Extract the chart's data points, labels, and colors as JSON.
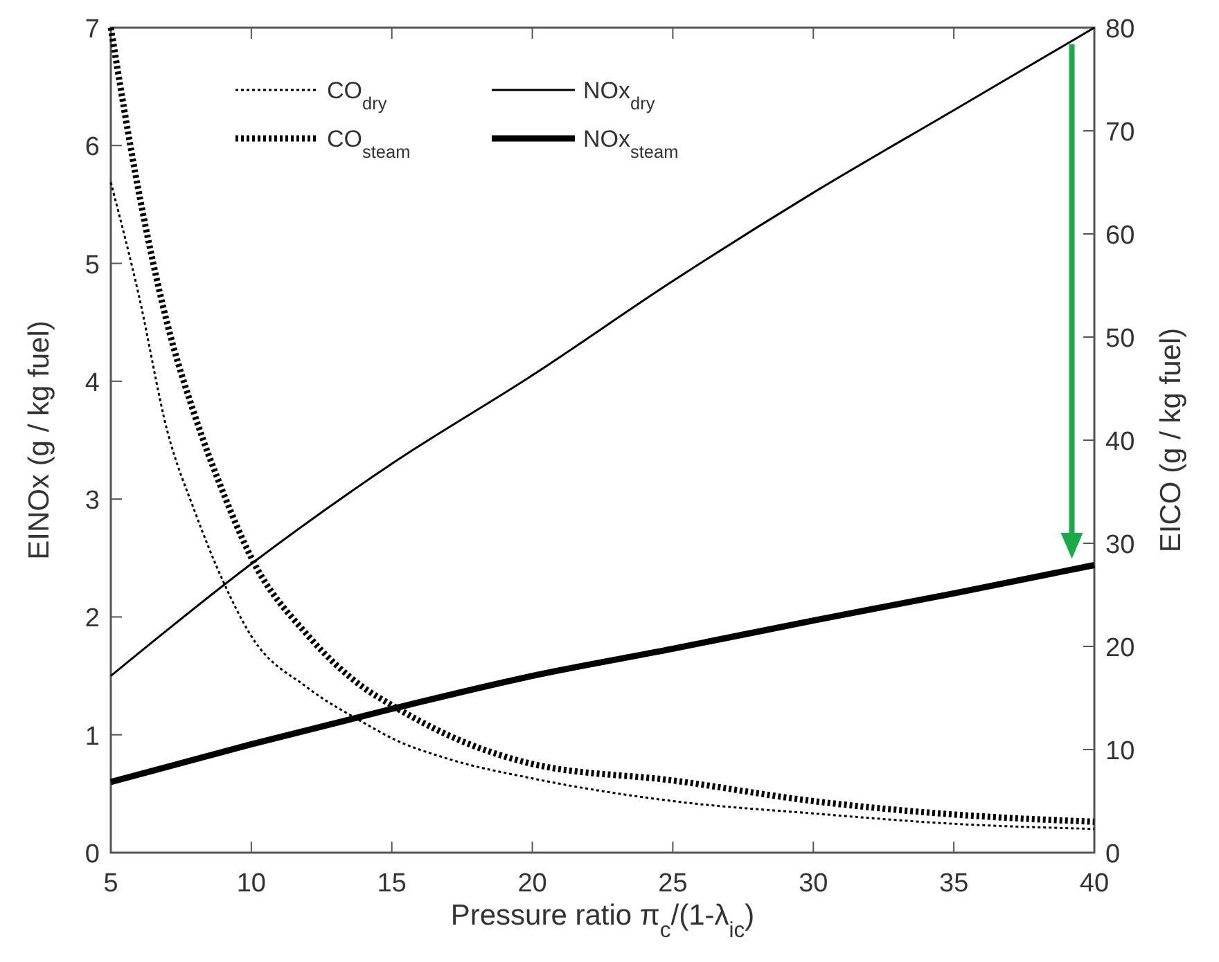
{
  "chart_data": {
    "type": "line",
    "xlabel": "Pressure ratio π$_{c}$/(1-λ$_{ic}$)",
    "ylabel": "EINOx  (g / kg fuel)",
    "y2label": "EICO  (g / kg fuel)",
    "xlim": [
      5,
      40
    ],
    "xticks": [
      5,
      10,
      15,
      20,
      25,
      30,
      35,
      40
    ],
    "ylim": [
      0,
      7
    ],
    "yticks": [
      0,
      1,
      2,
      3,
      4,
      5,
      6,
      7
    ],
    "y2lim": [
      0,
      80
    ],
    "y2ticks": [
      0,
      10,
      20,
      30,
      40,
      50,
      60,
      70,
      80
    ],
    "legend": "top left",
    "grid": false,
    "series": [
      {
        "name": "CO$_{dry}$",
        "color": "#000000",
        "axis": "y2",
        "line_style": "dotted",
        "x": [
          5,
          6,
          7,
          8,
          9,
          10,
          12,
          14,
          15,
          17,
          20,
          25,
          30,
          35,
          40
        ],
        "values": [
          65,
          54,
          41,
          33,
          26.3,
          21,
          16,
          12.6,
          11.1,
          9.1,
          7.2,
          5,
          3.8,
          2.8,
          2.3
        ]
      },
      {
        "name": "CO$_{steam}$",
        "color": "#000000",
        "axis": "y2",
        "line_style": "dotted",
        "x": [
          5,
          6,
          7,
          8,
          9,
          10,
          12,
          14,
          15,
          17,
          20,
          25,
          30,
          35,
          40
        ],
        "values": [
          80,
          64,
          51.4,
          42.3,
          34.9,
          28.6,
          21.1,
          16,
          14.3,
          11.4,
          8.6,
          7,
          5,
          3.7,
          3
        ]
      },
      {
        "name": "NOx$_{dry}$",
        "color": "#000000",
        "axis": "y",
        "line_style": "solid",
        "x": [
          5,
          10,
          15,
          20,
          25,
          30,
          35,
          40
        ],
        "values": [
          1.5,
          2.45,
          3.3,
          4.05,
          4.85,
          5.6,
          6.3,
          7.0
        ]
      },
      {
        "name": "NOx$_{steam}$",
        "color": "#000000",
        "axis": "y",
        "line_style": "solid",
        "x": [
          5,
          10,
          15,
          20,
          25,
          30,
          35,
          40
        ],
        "values": [
          0.6,
          0.92,
          1.22,
          1.5,
          1.73,
          1.97,
          2.2,
          2.44
        ]
      }
    ]
  }
}
